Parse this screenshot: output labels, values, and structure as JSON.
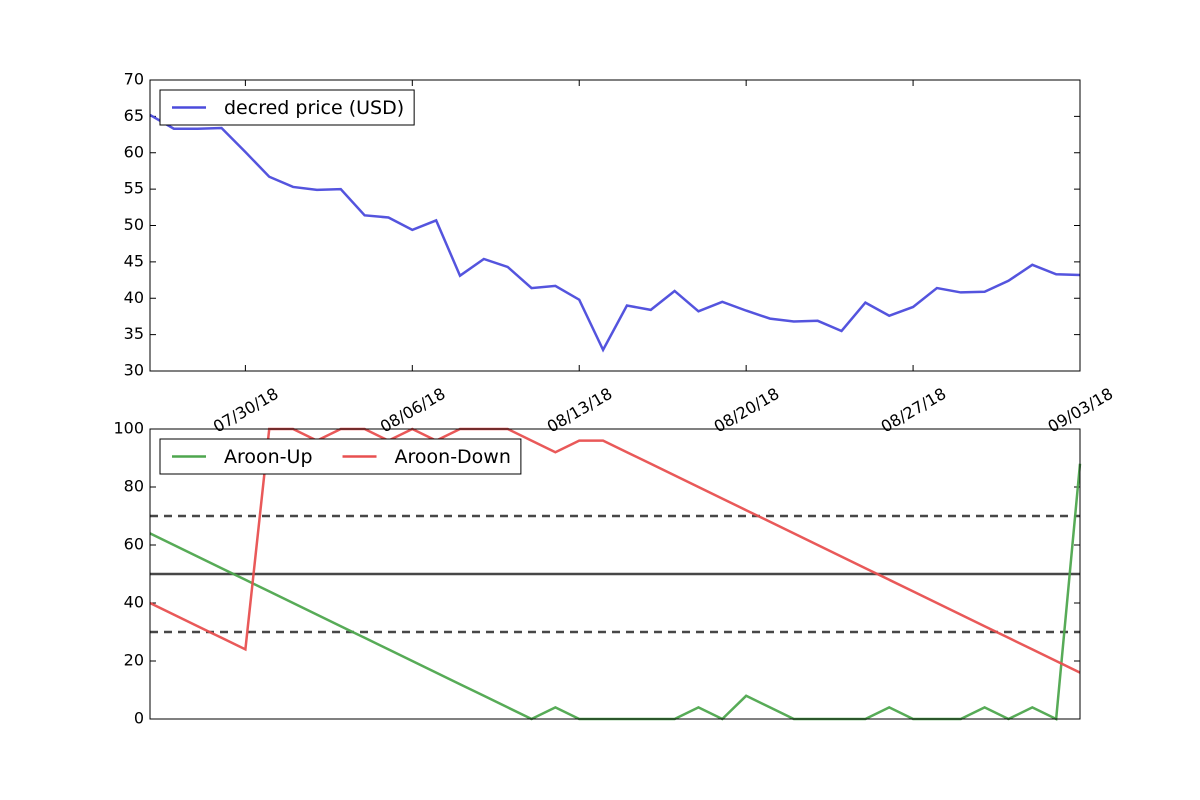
{
  "chart_data": [
    {
      "type": "line",
      "x": [
        "07/26/18",
        "07/27/18",
        "07/28/18",
        "07/29/18",
        "07/30/18",
        "07/31/18",
        "08/01/18",
        "08/02/18",
        "08/03/18",
        "08/04/18",
        "08/05/18",
        "08/06/18",
        "08/07/18",
        "08/08/18",
        "08/09/18",
        "08/10/18",
        "08/11/18",
        "08/12/18",
        "08/13/18",
        "08/14/18",
        "08/15/18",
        "08/16/18",
        "08/17/18",
        "08/18/18",
        "08/19/18",
        "08/20/18",
        "08/21/18",
        "08/22/18",
        "08/23/18",
        "08/24/18",
        "08/25/18",
        "08/26/18",
        "08/27/18",
        "08/28/18",
        "08/29/18",
        "08/30/18",
        "08/31/18",
        "09/01/18",
        "09/02/18",
        "09/03/18"
      ],
      "xticks": [
        "07/30/18",
        "08/06/18",
        "08/13/18",
        "08/20/18",
        "08/27/18",
        "09/03/18"
      ],
      "series": [
        {
          "name": "decred price (USD)",
          "color": "#4b4bdc",
          "values": [
            65.2,
            63.3,
            63.3,
            63.4,
            60.1,
            56.7,
            55.3,
            54.9,
            55.0,
            51.4,
            51.1,
            49.4,
            50.7,
            43.1,
            45.4,
            44.3,
            41.4,
            41.7,
            39.8,
            32.9,
            39.0,
            38.4,
            41.0,
            38.2,
            39.5,
            38.3,
            37.2,
            36.8,
            36.9,
            35.5,
            39.4,
            37.6,
            38.8,
            41.4,
            40.8,
            40.9,
            42.4,
            44.6,
            43.3,
            43.2
          ]
        }
      ],
      "ylim": [
        30,
        70
      ],
      "yticks": [
        30,
        35,
        40,
        45,
        50,
        55,
        60,
        65,
        70
      ],
      "legend": "upper left"
    },
    {
      "type": "line",
      "x": [
        "07/26/18",
        "07/27/18",
        "07/28/18",
        "07/29/18",
        "07/30/18",
        "07/31/18",
        "08/01/18",
        "08/02/18",
        "08/03/18",
        "08/04/18",
        "08/05/18",
        "08/06/18",
        "08/07/18",
        "08/08/18",
        "08/09/18",
        "08/10/18",
        "08/11/18",
        "08/12/18",
        "08/13/18",
        "08/14/18",
        "08/15/18",
        "08/16/18",
        "08/17/18",
        "08/18/18",
        "08/19/18",
        "08/20/18",
        "08/21/18",
        "08/22/18",
        "08/23/18",
        "08/24/18",
        "08/25/18",
        "08/26/18",
        "08/27/18",
        "08/28/18",
        "08/29/18",
        "08/30/18",
        "08/31/18",
        "09/01/18",
        "09/02/18",
        "09/03/18"
      ],
      "series": [
        {
          "name": "Aroon-Up",
          "color": "#4ea64e",
          "values": [
            64,
            60,
            56,
            52,
            48,
            44,
            40,
            36,
            32,
            28,
            24,
            20,
            16,
            12,
            8,
            4,
            0,
            4,
            0,
            0,
            0,
            0,
            0,
            4,
            0,
            8,
            4,
            0,
            0,
            0,
            0,
            4,
            0,
            0,
            0,
            4,
            0,
            4,
            0,
            88
          ]
        },
        {
          "name": "Aroon-Down",
          "color": "#e85050",
          "values": [
            40,
            36,
            32,
            28,
            24,
            100,
            100,
            96,
            100,
            100,
            96,
            100,
            96,
            100,
            100,
            100,
            96,
            92,
            96,
            96,
            92,
            88,
            84,
            80,
            76,
            72,
            68,
            64,
            60,
            56,
            52,
            48,
            44,
            40,
            36,
            32,
            28,
            24,
            20,
            16
          ]
        }
      ],
      "hlines": [
        {
          "value": 70,
          "style": "dashed"
        },
        {
          "value": 50,
          "style": "solid"
        },
        {
          "value": 30,
          "style": "dashed"
        }
      ],
      "ylim": [
        0,
        100
      ],
      "yticks": [
        0,
        20,
        40,
        60,
        80,
        100
      ],
      "legend": "upper left"
    }
  ]
}
